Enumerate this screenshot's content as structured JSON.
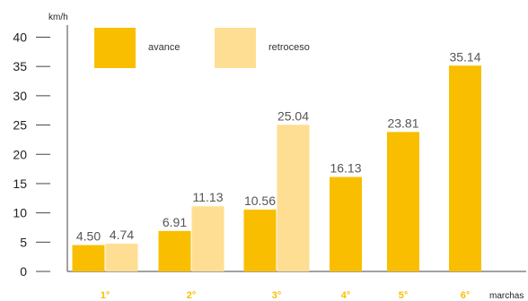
{
  "chart_data": {
    "type": "bar",
    "categories": [
      "1°",
      "2°",
      "3°",
      "4°",
      "5°",
      "6°"
    ],
    "series": [
      {
        "name": "avance",
        "color": "#F9BE00",
        "values": [
          4.5,
          6.91,
          10.56,
          16.13,
          23.81,
          35.14
        ]
      },
      {
        "name": "retroceso",
        "color": "#FEDE93",
        "values": [
          4.74,
          11.13,
          25.04,
          null,
          null,
          null
        ]
      }
    ],
    "value_labels": {
      "avance": [
        "4.50",
        "6.91",
        "10.56",
        "16.13",
        "23.81",
        "35.14"
      ],
      "retroceso": [
        "4.74",
        "11.13",
        "25.04",
        "",
        "",
        ""
      ]
    },
    "ylabel": "km/h",
    "xlabel": "marchas",
    "ylim": [
      0,
      40
    ],
    "yticks": [
      0,
      5,
      10,
      15,
      20,
      25,
      30,
      35,
      40
    ],
    "grid": false,
    "legend_position": "top-left",
    "category_label_color": "#F9BE00"
  }
}
